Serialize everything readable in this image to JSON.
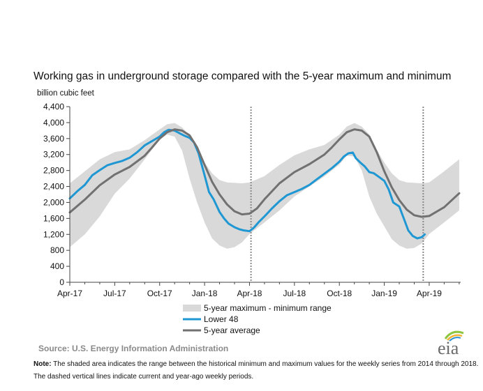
{
  "chart_data": {
    "type": "line",
    "title": "Working gas in underground storage compared with the 5-year maximum and minimum",
    "ylabel": "billion cubic feet",
    "ylim": [
      0,
      4400
    ],
    "yticks": [
      "0",
      "400",
      "800",
      "1,200",
      "1,600",
      "2,000",
      "2,400",
      "2,800",
      "3,200",
      "3,600",
      "4,000",
      "4,400"
    ],
    "xlim": [
      0,
      26.1
    ],
    "xticks": [
      {
        "label": "Apr-17",
        "x": 0
      },
      {
        "label": "Jul-17",
        "x": 3
      },
      {
        "label": "Oct-17",
        "x": 6
      },
      {
        "label": "Jan-18",
        "x": 9
      },
      {
        "label": "Apr-18",
        "x": 12
      },
      {
        "label": "Jul-18",
        "x": 15
      },
      {
        "label": "Oct-18",
        "x": 18
      },
      {
        "label": "Jan-19",
        "x": 21
      },
      {
        "label": "Apr-19",
        "x": 24
      }
    ],
    "grid": false,
    "legend_placement": "bottom-center",
    "vlines_months": [
      12.1,
      23.6
    ],
    "x_unit": "months since Apr-17",
    "series": [
      {
        "name": "5-year maximum - minimum range",
        "kind": "band",
        "color": "#d9d9d9",
        "x": [
          0,
          1,
          2,
          3,
          4,
          5,
          6,
          6.5,
          7,
          7.5,
          8,
          8.5,
          9,
          9.5,
          10,
          10.5,
          11,
          11.5,
          12,
          13,
          14,
          15,
          16,
          17,
          18,
          18.5,
          19,
          19.5,
          20,
          20.5,
          21,
          21.5,
          22,
          22.5,
          23,
          23.5,
          24,
          25,
          26
        ],
        "max": [
          2480,
          2780,
          3080,
          3260,
          3330,
          3560,
          3830,
          3960,
          3990,
          3880,
          3680,
          3320,
          3000,
          2730,
          2560,
          2500,
          2490,
          2480,
          2500,
          2660,
          2940,
          3180,
          3330,
          3440,
          3700,
          3900,
          3990,
          3900,
          3700,
          3320,
          3000,
          2730,
          2560,
          2500,
          2490,
          2480,
          2500,
          2780,
          3080
        ],
        "min": [
          880,
          1200,
          1650,
          2220,
          2600,
          3080,
          3580,
          3700,
          3650,
          3300,
          2600,
          2000,
          1500,
          1100,
          920,
          840,
          880,
          1000,
          1210,
          1500,
          1800,
          2150,
          2400,
          2650,
          2950,
          3170,
          3150,
          2800,
          2150,
          1720,
          1400,
          1080,
          920,
          840,
          860,
          970,
          1210,
          1500,
          1800
        ]
      },
      {
        "name": "Lower 48",
        "kind": "line",
        "color": "#1f97d3",
        "x": [
          0,
          0.5,
          1,
          1.5,
          2,
          2.5,
          3,
          3.5,
          4,
          4.5,
          5,
          5.5,
          6,
          6.3,
          6.6,
          7,
          7.3,
          7.6,
          8,
          8.3,
          8.6,
          9,
          9.3,
          9.6,
          10,
          10.3,
          10.6,
          11,
          11.3,
          11.6,
          12,
          12.3,
          12.6,
          13,
          13.5,
          14,
          14.5,
          15,
          15.5,
          16,
          16.5,
          17,
          17.5,
          18,
          18.3,
          18.6,
          18.9,
          19.1,
          19.4,
          19.7,
          20,
          20.3,
          20.6,
          21,
          21.3,
          21.6,
          22,
          22.3,
          22.6,
          22.9,
          23.2,
          23.5,
          23.7
        ],
        "values": [
          2100,
          2280,
          2440,
          2680,
          2810,
          2930,
          2990,
          3040,
          3120,
          3260,
          3430,
          3540,
          3650,
          3760,
          3820,
          3800,
          3740,
          3680,
          3620,
          3500,
          3230,
          2680,
          2260,
          2080,
          1760,
          1600,
          1470,
          1380,
          1330,
          1300,
          1280,
          1370,
          1500,
          1650,
          1850,
          2030,
          2180,
          2260,
          2340,
          2440,
          2580,
          2720,
          2860,
          3020,
          3150,
          3230,
          3250,
          3110,
          3000,
          2900,
          2760,
          2730,
          2650,
          2540,
          2320,
          2000,
          1900,
          1600,
          1300,
          1160,
          1100,
          1130,
          1200
        ]
      },
      {
        "name": "5-year average",
        "kind": "line",
        "color": "#717171",
        "x": [
          0,
          1,
          2,
          3,
          4,
          5,
          5.5,
          6,
          6.5,
          7,
          7.5,
          8,
          8.5,
          9,
          9.5,
          10,
          10.5,
          11,
          11.5,
          12,
          12.5,
          13,
          14,
          15,
          16,
          17,
          17.5,
          18,
          18.5,
          19,
          19.5,
          20,
          20.5,
          21,
          21.5,
          22,
          22.5,
          23,
          23.5,
          24,
          25,
          26
        ],
        "values": [
          1750,
          2070,
          2430,
          2700,
          2890,
          3170,
          3380,
          3600,
          3760,
          3830,
          3800,
          3680,
          3380,
          2940,
          2520,
          2200,
          1950,
          1780,
          1700,
          1720,
          1850,
          2080,
          2480,
          2760,
          2960,
          3200,
          3380,
          3580,
          3760,
          3830,
          3800,
          3650,
          3260,
          2780,
          2380,
          2060,
          1820,
          1680,
          1640,
          1660,
          1880,
          2230
        ]
      }
    ]
  },
  "source_text": "Source:  U.S. Energy Information Administration",
  "note_label": "Note:",
  "note_text": " The shaded area indicates the range between the historical minimum and maximum values for the weekly series from 2014 through 2018. The dashed vertical lines indicate current and year-ago weekly periods.",
  "logo_text": "eia",
  "colors": {
    "band": "#d9d9d9",
    "lower48": "#1f97d3",
    "avg": "#717171",
    "axis": "#444444",
    "logo_text": "#6b6b6b",
    "logo_arc_green": "#8dc63f",
    "logo_arc_yellow": "#f2b233",
    "logo_arc_blue": "#2a8fd0"
  }
}
